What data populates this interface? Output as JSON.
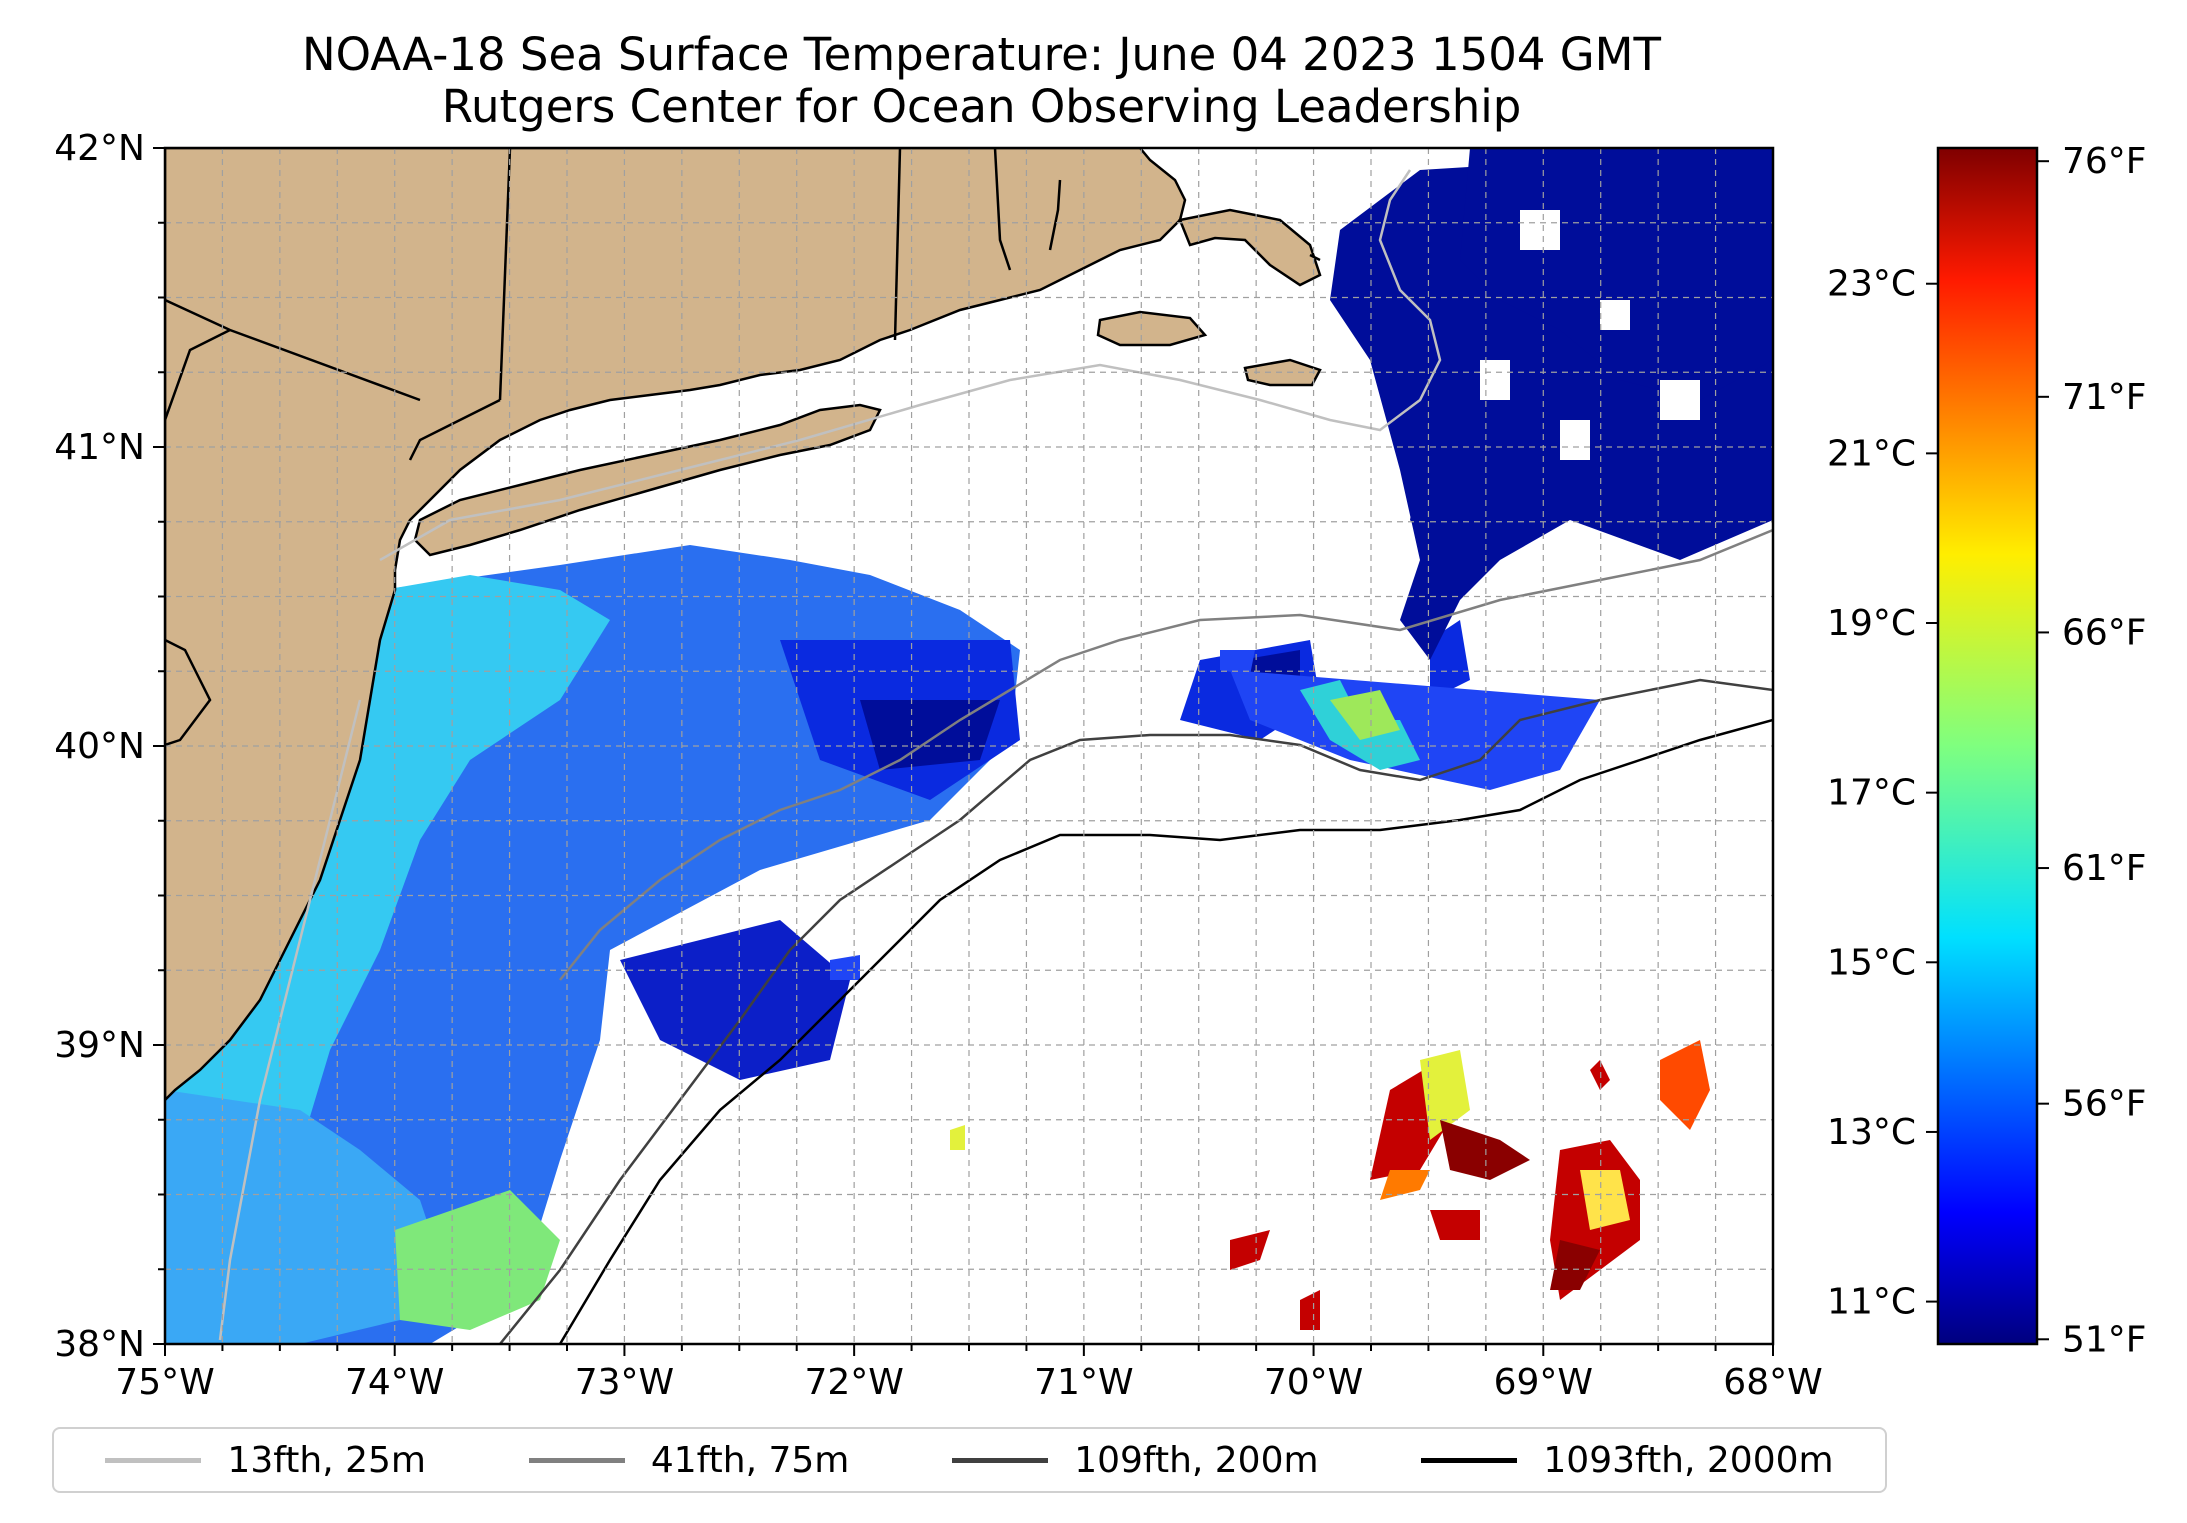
{
  "title": "NOAA-18 Sea Surface Temperature: June 04 2023 1504 GMT",
  "subtitle": "Rutgers Center for Ocean Observing Leadership",
  "chart_data": {
    "type": "heatmap",
    "map": {
      "lon_range": [
        -75,
        -68
      ],
      "lat_range": [
        38,
        42
      ],
      "x_ticks": [
        "75°W",
        "74°W",
        "73°W",
        "72°W",
        "71°W",
        "70°W",
        "69°W",
        "68°W"
      ],
      "y_ticks": [
        "38°N",
        "39°N",
        "40°N",
        "41°N",
        "42°N"
      ],
      "grid": true,
      "land_color": "#d2b48c"
    },
    "colorbar": {
      "colormap": "jet",
      "range_c": [
        10.5,
        24.6
      ],
      "celsius_ticks": [
        {
          "value": 11,
          "label": "11°C"
        },
        {
          "value": 13,
          "label": "13°C"
        },
        {
          "value": 15,
          "label": "15°C"
        },
        {
          "value": 17,
          "label": "17°C"
        },
        {
          "value": 19,
          "label": "19°C"
        },
        {
          "value": 21,
          "label": "21°C"
        },
        {
          "value": 23,
          "label": "23°C"
        }
      ],
      "fahrenheit_ticks": [
        {
          "value": 51,
          "label": "51°F"
        },
        {
          "value": 56,
          "label": "56°F"
        },
        {
          "value": 61,
          "label": "61°F"
        },
        {
          "value": 66,
          "label": "66°F"
        },
        {
          "value": 71,
          "label": "71°F"
        },
        {
          "value": 76,
          "label": "76°F"
        }
      ]
    },
    "legend": {
      "placement": "bottom",
      "entries": [
        {
          "label": "13fth, 25m",
          "color": "#c0c0c0"
        },
        {
          "label": "41fth, 75m",
          "color": "#808080"
        },
        {
          "label": "109fth, 200m",
          "color": "#404040"
        },
        {
          "label": "1093fth, 2000m",
          "color": "#000000"
        }
      ]
    }
  }
}
